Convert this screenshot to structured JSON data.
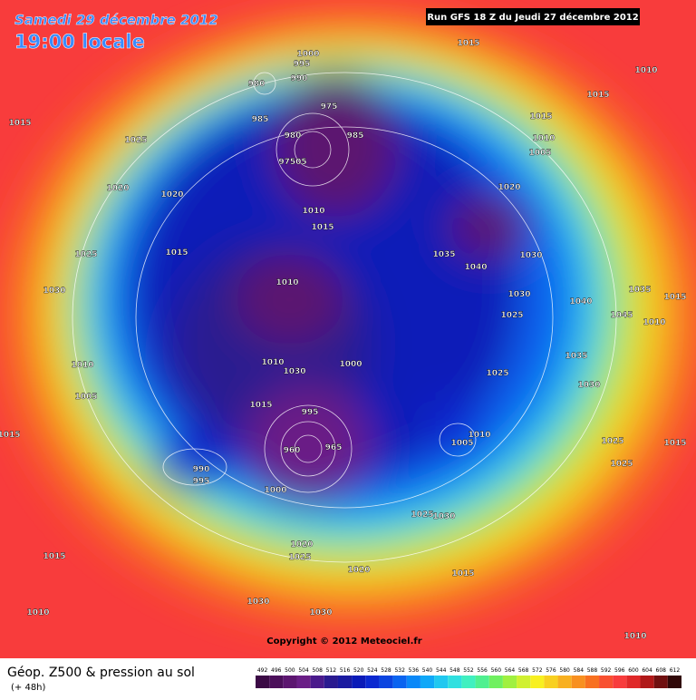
{
  "header": {
    "title": "Samedi 29 décembre 2012",
    "subtitle": "19:00 locale",
    "run": "Run GFS 18 Z du Jeudi 27 décembre 2012"
  },
  "map": {
    "isobar_labels": [
      "1000",
      "995",
      "990",
      "980",
      "1015",
      "1010",
      "1015",
      "1015",
      "1025",
      "975",
      "985",
      "985",
      "980",
      "97505",
      "1015",
      "1010",
      "1005",
      "1020",
      "1020",
      "1020",
      "1010",
      "1015",
      "1025",
      "1015",
      "1035",
      "1040",
      "1030",
      "1010",
      "1030",
      "1030",
      "1040",
      "1035",
      "1015",
      "1045",
      "1010",
      "1025",
      "1000",
      "1010",
      "1030",
      "1035",
      "1010",
      "1025",
      "1005",
      "1030",
      "1015",
      "995",
      "1005",
      "1010",
      "1015",
      "1025",
      "1015",
      "1025",
      "990",
      "995",
      "965",
      "960",
      "1000",
      "1025",
      "1030",
      "1020",
      "1025",
      "1015",
      "1020",
      "1015",
      "1030",
      "1010",
      "1030",
      "1010"
    ]
  },
  "footer": {
    "copyright": "Copyright © 2012 Meteociel.fr",
    "product": "Géop. Z500 & pression au sol",
    "lead": "(+ 48h)"
  },
  "colorbar": {
    "labels": [
      "492",
      "496",
      "500",
      "504",
      "508",
      "512",
      "516",
      "520",
      "524",
      "528",
      "532",
      "536",
      "540",
      "544",
      "548",
      "552",
      "556",
      "560",
      "564",
      "568",
      "572",
      "576",
      "580",
      "584",
      "588",
      "592",
      "596",
      "600",
      "604",
      "608",
      "612"
    ],
    "colors": [
      "#3b0a45",
      "#4b0f5a",
      "#5c1670",
      "#6a1e86",
      "#4a1a8c",
      "#2a1a90",
      "#1a1aa0",
      "#0a1ab8",
      "#0a28d0",
      "#0a44e0",
      "#0a64f0",
      "#0a88f8",
      "#10a8f8",
      "#20c8f0",
      "#30e0e0",
      "#40f0c0",
      "#50f090",
      "#70f060",
      "#a0f040",
      "#d0f030",
      "#f8f020",
      "#f8d020",
      "#f8b020",
      "#f89020",
      "#f87020",
      "#f85030",
      "#f83c3c",
      "#e02828",
      "#b01818",
      "#701010",
      "#300808"
    ]
  }
}
